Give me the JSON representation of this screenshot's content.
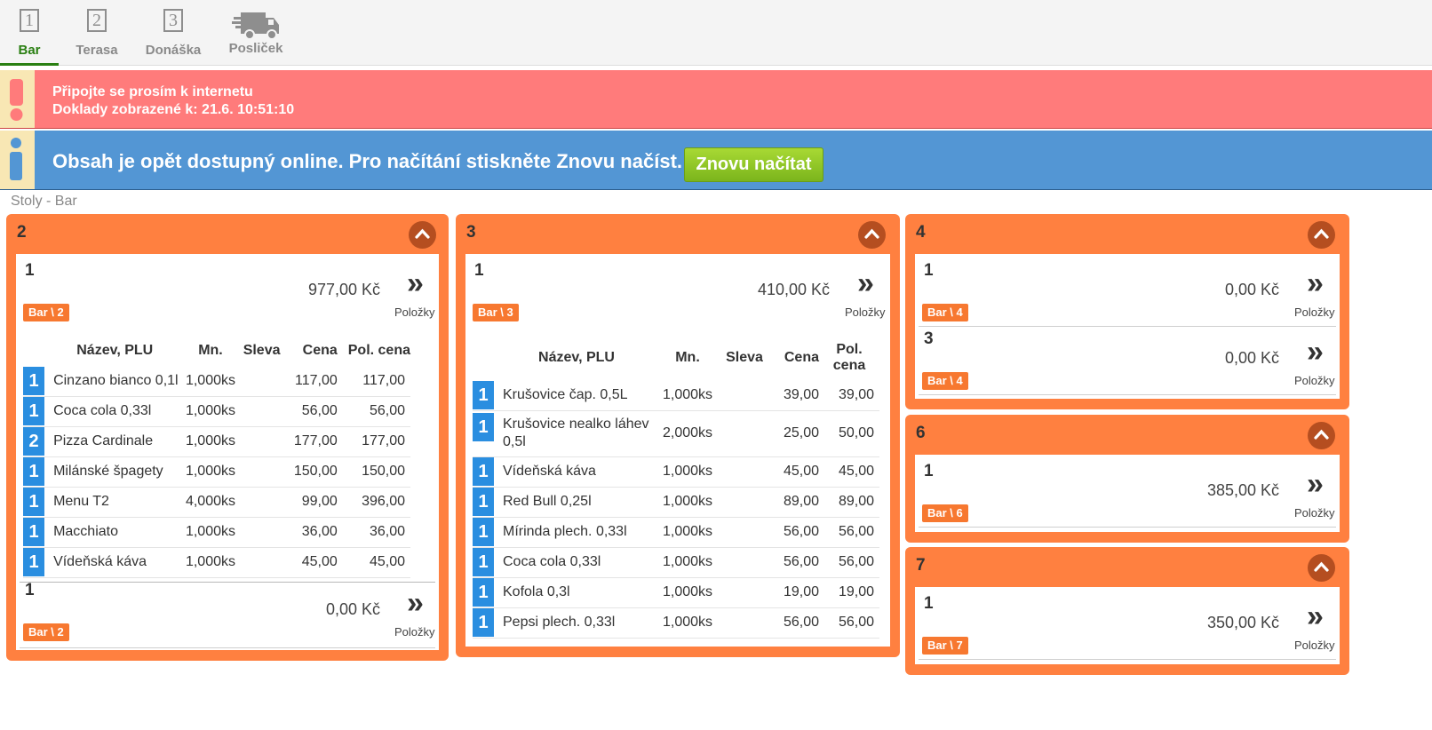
{
  "tabs": [
    {
      "label": "Bar",
      "number": "1"
    },
    {
      "label": "Terasa",
      "number": "2"
    },
    {
      "label": "Donáška",
      "number": "3"
    },
    {
      "label": "Posliček"
    }
  ],
  "alerts": {
    "offline_line1": "Připojte se prosím k internetu",
    "offline_line2": "Doklady zobrazené k: 21.6. 10:51:10",
    "online_msg": "Obsah je opět dostupný online. Pro načítání stiskněte Znovu načíst.",
    "reload_button": "Znovu načítat"
  },
  "section_title": "Stoly - Bar",
  "items_label": "Položky",
  "columns": {
    "name": "Název, PLU",
    "qty": "Mn.",
    "discount": "Sleva",
    "price": "Cena",
    "total": "Pol. cena"
  },
  "colors": {
    "card": "#ff8040",
    "tag": "#f77830",
    "qty_badge": "#2a8ee0",
    "alert_red": "#ff7b7b",
    "alert_blue": "#5396d4",
    "active_tab": "#2a7f12"
  },
  "tables": [
    {
      "name": "2",
      "orders": [
        {
          "number": "1",
          "total": "977,00 Kč",
          "tag": "Bar \\ 2",
          "items": [
            {
              "q": "1",
              "name": "Cinzano bianco 0,1l",
              "qty": "1,000ks",
              "discount": "",
              "price": "117,00",
              "total": "117,00"
            },
            {
              "q": "1",
              "name": "Coca cola 0,33l",
              "qty": "1,000ks",
              "discount": "",
              "price": "56,00",
              "total": "56,00"
            },
            {
              "q": "2",
              "name": "Pizza Cardinale",
              "qty": "1,000ks",
              "discount": "",
              "price": "177,00",
              "total": "177,00"
            },
            {
              "q": "1",
              "name": "Milánské špagety",
              "qty": "1,000ks",
              "discount": "",
              "price": "150,00",
              "total": "150,00"
            },
            {
              "q": "1",
              "name": "Menu T2",
              "qty": "4,000ks",
              "discount": "",
              "price": "99,00",
              "total": "396,00"
            },
            {
              "q": "1",
              "name": "Macchiato",
              "qty": "1,000ks",
              "discount": "",
              "price": "36,00",
              "total": "36,00"
            },
            {
              "q": "1",
              "name": "Vídeňská káva",
              "qty": "1,000ks",
              "discount": "",
              "price": "45,00",
              "total": "45,00"
            }
          ]
        },
        {
          "number": "1",
          "total": "0,00 Kč",
          "tag": "Bar \\ 2",
          "items": []
        }
      ]
    },
    {
      "name": "3",
      "orders": [
        {
          "number": "1",
          "total": "410,00 Kč",
          "tag": "Bar \\ 3",
          "items": [
            {
              "q": "1",
              "name": "Krušovice čap. 0,5L",
              "qty": "1,000ks",
              "discount": "",
              "price": "39,00",
              "total": "39,00"
            },
            {
              "q": "1",
              "name": "Krušovice nealko láhev 0,5l",
              "qty": "2,000ks",
              "discount": "",
              "price": "25,00",
              "total": "50,00"
            },
            {
              "q": "1",
              "name": "Vídeňská káva",
              "qty": "1,000ks",
              "discount": "",
              "price": "45,00",
              "total": "45,00"
            },
            {
              "q": "1",
              "name": "Red Bull 0,25l",
              "qty": "1,000ks",
              "discount": "",
              "price": "89,00",
              "total": "89,00"
            },
            {
              "q": "1",
              "name": "Mírinda plech. 0,33l",
              "qty": "1,000ks",
              "discount": "",
              "price": "56,00",
              "total": "56,00"
            },
            {
              "q": "1",
              "name": "Coca cola 0,33l",
              "qty": "1,000ks",
              "discount": "",
              "price": "56,00",
              "total": "56,00"
            },
            {
              "q": "1",
              "name": "Kofola 0,3l",
              "qty": "1,000ks",
              "discount": "",
              "price": "19,00",
              "total": "19,00"
            },
            {
              "q": "1",
              "name": "Pepsi plech. 0,33l",
              "qty": "1,000ks",
              "discount": "",
              "price": "56,00",
              "total": "56,00"
            }
          ]
        }
      ]
    },
    {
      "name": "4",
      "orders": [
        {
          "number": "1",
          "total": "0,00 Kč",
          "tag": "Bar \\ 4",
          "items": []
        },
        {
          "number": "3",
          "total": "0,00 Kč",
          "tag": "Bar \\ 4",
          "items": []
        }
      ]
    },
    {
      "name": "6",
      "orders": [
        {
          "number": "1",
          "total": "385,00 Kč",
          "tag": "Bar \\ 6",
          "items": []
        }
      ]
    },
    {
      "name": "7",
      "orders": [
        {
          "number": "1",
          "total": "350,00 Kč",
          "tag": "Bar \\ 7",
          "items": []
        }
      ]
    }
  ]
}
